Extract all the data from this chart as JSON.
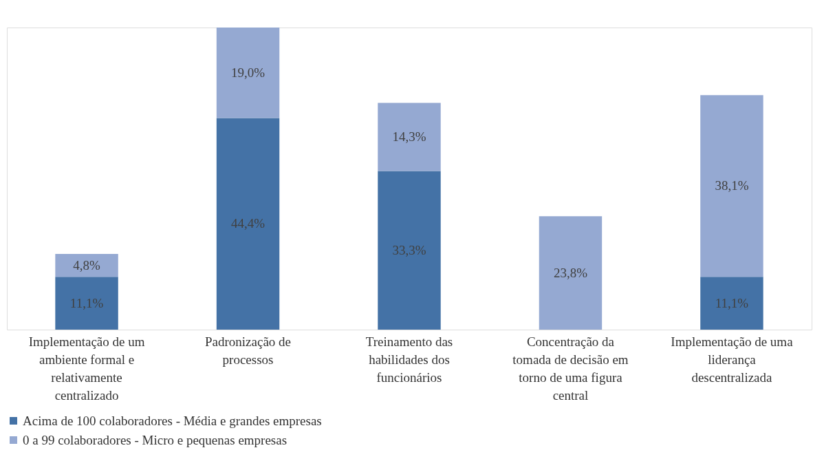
{
  "chart_data": {
    "type": "bar",
    "stacked": true,
    "legend": "bottom",
    "grid": false,
    "tick_labels": "x",
    "categories": [
      "Implementação de um ambiente formal e relativamente centralizado",
      "Padronização de processos",
      "Treinamento das habilidades dos funcionários",
      "Concentração da tomada de decisão em torno de uma figura central",
      "Implementação de uma liderança descentralizada"
    ],
    "series": [
      {
        "name": "Acima de 100 colaboradores - Média e grandes empresas",
        "color": "#4472a6",
        "values": [
          11.1,
          44.4,
          33.3,
          null,
          11.1
        ],
        "value_labels": [
          "11,1%",
          "44,4%",
          "33,3%",
          null,
          "11,1%"
        ]
      },
      {
        "name": "0 a 99 colaboradores - Micro e pequenas empresas",
        "color": "#95a9d2",
        "values": [
          4.8,
          19.0,
          14.3,
          23.8,
          38.1
        ],
        "value_labels": [
          "4,8%",
          "19,0%",
          "14,3%",
          "23,8%",
          "38,1%"
        ]
      }
    ]
  }
}
